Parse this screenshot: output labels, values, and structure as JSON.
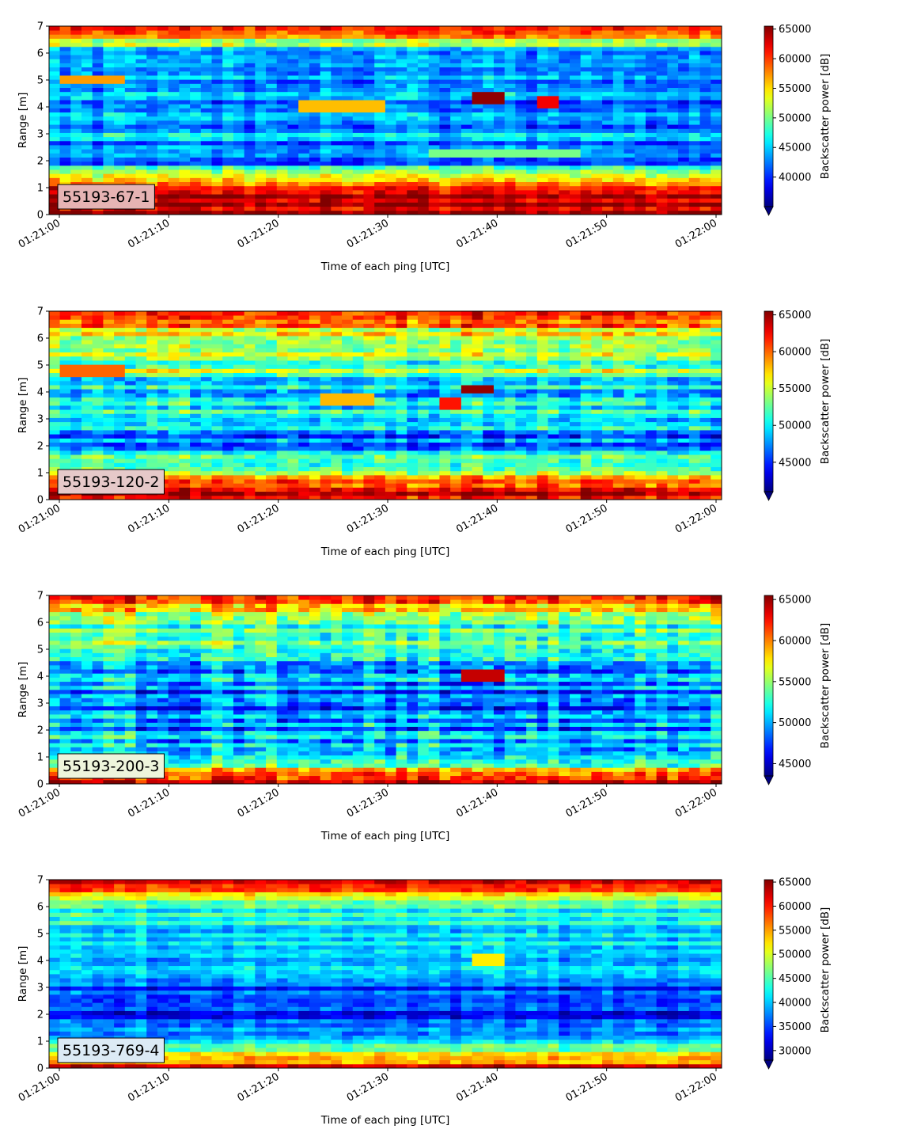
{
  "chart_data": {
    "type": "heatmap",
    "colormap": "jet",
    "panels": [
      {
        "label": "55193-67-1",
        "label_box_color": "#e6b3b3",
        "xlabel": "Time of each ping [UTC]",
        "ylabel": "Range [m]",
        "ylim": [
          0,
          7
        ],
        "yticks": [
          "0",
          "1",
          "2",
          "3",
          "4",
          "5",
          "6",
          "7"
        ],
        "xticks": [
          "01:21:00",
          "01:21:10",
          "01:21:20",
          "01:21:30",
          "01:21:40",
          "01:21:50",
          "01:22:00"
        ],
        "colorbar_label": "Backscatter power [dB]",
        "colorbar_ticks": [
          "40000",
          "45000",
          "50000",
          "55000",
          "60000",
          "65000"
        ],
        "colorbar_range": [
          35000,
          65500
        ],
        "profile_range_m": [
          0,
          1,
          2,
          3,
          4,
          5,
          6,
          7
        ],
        "profile_mean_db": [
          64000,
          63000,
          41000,
          44000,
          42000,
          44000,
          43000,
          65000
        ],
        "features": [
          {
            "time_s": [
              22,
              30
            ],
            "range_m": 4.0,
            "db": 56000
          },
          {
            "time_s": [
              38,
              41
            ],
            "range_m": 4.35,
            "db": 65000
          },
          {
            "time_s": [
              44,
              46
            ],
            "range_m": 4.2,
            "db": 62000
          },
          {
            "time_s": [
              0,
              6
            ],
            "range_m": 5.0,
            "db": 57000
          },
          {
            "time_s": [
              34,
              48
            ],
            "range_m": 2.3,
            "db": 50000
          }
        ]
      },
      {
        "label": "55193-120-2",
        "label_box_color": "#e6c9c9",
        "xlabel": "Time of each ping [UTC]",
        "ylabel": "Range [m]",
        "ylim": [
          0,
          7
        ],
        "yticks": [
          "0",
          "1",
          "2",
          "3",
          "4",
          "5",
          "6",
          "7"
        ],
        "xticks": [
          "01:21:00",
          "01:21:10",
          "01:21:20",
          "01:21:30",
          "01:21:40",
          "01:21:50",
          "01:22:00"
        ],
        "colorbar_label": "Backscatter power [dB]",
        "colorbar_ticks": [
          "45000",
          "50000",
          "55000",
          "60000",
          "65000"
        ],
        "colorbar_range": [
          41000,
          65500
        ],
        "profile_range_m": [
          0,
          1,
          2,
          3,
          4,
          5,
          6,
          7
        ],
        "profile_mean_db": [
          65000,
          55000,
          46000,
          50000,
          50000,
          53000,
          54000,
          64000
        ],
        "features": [
          {
            "time_s": [
              24,
              29
            ],
            "range_m": 3.75,
            "db": 58000
          },
          {
            "time_s": [
              37,
              40
            ],
            "range_m": 4.1,
            "db": 65000
          },
          {
            "time_s": [
              35,
              37
            ],
            "range_m": 3.6,
            "db": 62000
          },
          {
            "time_s": [
              0,
              6
            ],
            "range_m": 4.8,
            "db": 60000
          }
        ]
      },
      {
        "label": "55193-200-3",
        "label_box_color": "#eef5dc",
        "xlabel": "Time of each ping [UTC]",
        "ylabel": "Range [m]",
        "ylim": [
          0,
          7
        ],
        "yticks": [
          "0",
          "1",
          "2",
          "3",
          "4",
          "5",
          "6",
          "7"
        ],
        "xticks": [
          "01:21:00",
          "01:21:10",
          "01:21:20",
          "01:21:30",
          "01:21:40",
          "01:21:50",
          "01:22:00"
        ],
        "colorbar_label": "Backscatter power [dB]",
        "colorbar_ticks": [
          "45000",
          "50000",
          "55000",
          "60000",
          "65000"
        ],
        "colorbar_range": [
          43500,
          65500
        ],
        "profile_range_m": [
          0,
          1,
          2,
          3,
          4,
          5,
          6,
          7
        ],
        "profile_mean_db": [
          65000,
          52000,
          49000,
          48000,
          50000,
          53000,
          54000,
          64000
        ],
        "features": [
          {
            "time_s": [
              37,
              41
            ],
            "range_m": 4.05,
            "db": 64000
          }
        ]
      },
      {
        "label": "55193-769-4",
        "label_box_color": "#dceaf5",
        "xlabel": "Time of each ping [UTC]",
        "ylabel": "Range [m]",
        "ylim": [
          0,
          7
        ],
        "yticks": [
          "0",
          "1",
          "2",
          "3",
          "4",
          "5",
          "6",
          "7"
        ],
        "xticks": [
          "01:21:00",
          "01:21:10",
          "01:21:20",
          "01:21:30",
          "01:21:40",
          "01:21:50",
          "01:22:00"
        ],
        "colorbar_label": "Backscatter power [dB]",
        "colorbar_ticks": [
          "30000",
          "35000",
          "40000",
          "45000",
          "50000",
          "55000",
          "60000",
          "65000"
        ],
        "colorbar_range": [
          28000,
          65500
        ],
        "profile_range_m": [
          0,
          1,
          2,
          3,
          4,
          5,
          6,
          7
        ],
        "profile_mean_db": [
          62000,
          40000,
          33000,
          35000,
          40000,
          42000,
          44000,
          64000
        ],
        "features": [
          {
            "time_s": [
              38,
              41
            ],
            "range_m": 4.0,
            "db": 52000
          }
        ]
      }
    ]
  }
}
